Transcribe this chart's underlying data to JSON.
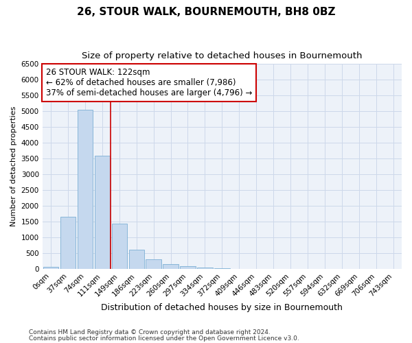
{
  "title": "26, STOUR WALK, BOURNEMOUTH, BH8 0BZ",
  "subtitle": "Size of property relative to detached houses in Bournemouth",
  "xlabel": "Distribution of detached houses by size in Bournemouth",
  "ylabel": "Number of detached properties",
  "categories": [
    "0sqm",
    "37sqm",
    "74sqm",
    "111sqm",
    "149sqm",
    "186sqm",
    "223sqm",
    "260sqm",
    "297sqm",
    "334sqm",
    "372sqm",
    "409sqm",
    "446sqm",
    "483sqm",
    "520sqm",
    "557sqm",
    "594sqm",
    "632sqm",
    "669sqm",
    "706sqm",
    "743sqm"
  ],
  "values": [
    60,
    1650,
    5050,
    3600,
    1430,
    610,
    295,
    150,
    80,
    50,
    15,
    5,
    3,
    0,
    0,
    0,
    0,
    0,
    0,
    0,
    0
  ],
  "bar_color": "#c5d8ee",
  "bar_edge_color": "#7bafd4",
  "grid_color": "#cdd8ea",
  "background_color": "#edf2f9",
  "vline_color": "#cc0000",
  "vline_pos": 3.5,
  "annotation_text": "26 STOUR WALK: 122sqm\n← 62% of detached houses are smaller (7,986)\n37% of semi-detached houses are larger (4,796) →",
  "annotation_box_color": "white",
  "annotation_box_edge": "#cc0000",
  "ylim": [
    0,
    6500
  ],
  "yticks": [
    0,
    500,
    1000,
    1500,
    2000,
    2500,
    3000,
    3500,
    4000,
    4500,
    5000,
    5500,
    6000,
    6500
  ],
  "footer1": "Contains HM Land Registry data © Crown copyright and database right 2024.",
  "footer2": "Contains public sector information licensed under the Open Government Licence v3.0.",
  "title_fontsize": 11,
  "subtitle_fontsize": 9.5,
  "xlabel_fontsize": 9,
  "ylabel_fontsize": 8,
  "tick_fontsize": 7.5,
  "annotation_fontsize": 8.5,
  "footer_fontsize": 6.5
}
